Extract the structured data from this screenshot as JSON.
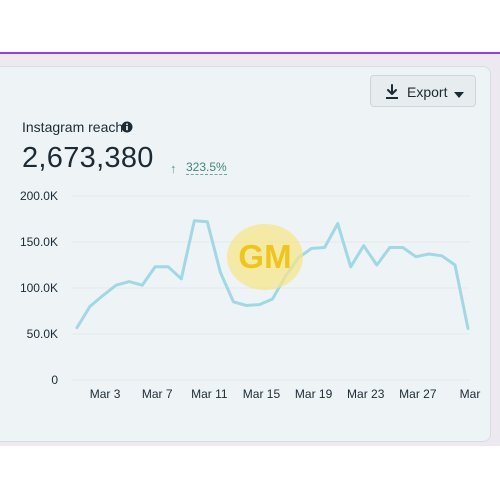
{
  "export": {
    "label": "Export"
  },
  "metric": {
    "title": "Instagram reach",
    "value": "2,673,380",
    "change_arrow": "↑",
    "change": "323.5%"
  },
  "colors": {
    "line": "#9fd8e6",
    "accent": "#8a3ffc",
    "positive": "#3b8a7a"
  },
  "icons": {
    "export": "download-icon",
    "dropdown": "caret-down-icon",
    "info": "info-icon"
  },
  "watermark": {
    "text": "GM"
  },
  "chart_data": {
    "type": "line",
    "title": "",
    "xlabel": "",
    "ylabel": "",
    "ylim": [
      0,
      200000
    ],
    "y_ticks": [
      0,
      50000,
      100000,
      150000,
      200000
    ],
    "y_tick_labels": [
      "0",
      "50.0K",
      "100.0K",
      "150.0K",
      "200.0K"
    ],
    "x_tick_labels": [
      "Mar 3",
      "Mar 7",
      "Mar 11",
      "Mar 15",
      "Mar 19",
      "Mar 23",
      "Mar 27",
      "Mar"
    ],
    "x_tick_days": [
      3,
      7,
      11,
      15,
      19,
      23,
      27,
      31
    ],
    "grid": true,
    "series": [
      {
        "x": [
          1,
          2,
          3,
          4,
          5,
          6,
          7,
          8,
          9,
          10,
          11,
          12,
          13,
          14,
          15,
          16,
          17,
          18,
          19,
          20,
          21,
          22,
          23,
          24,
          25,
          26,
          27,
          28,
          29,
          30,
          31
        ],
        "values": [
          57000,
          80000,
          92000,
          103000,
          107000,
          103000,
          123000,
          123000,
          110000,
          173000,
          172000,
          117000,
          85000,
          81000,
          82000,
          88000,
          113000,
          133000,
          143000,
          144000,
          170000,
          123000,
          146000,
          125000,
          144000,
          144000,
          134000,
          137000,
          135000,
          125000,
          56000
        ]
      }
    ]
  }
}
